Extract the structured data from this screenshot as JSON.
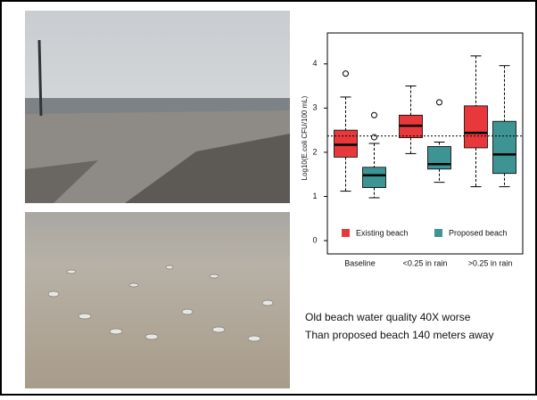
{
  "chart_data": {
    "type": "boxplot",
    "y_label": "Log10(E.coli CFU/100 mL)",
    "categories": [
      "Baseline",
      "<0.25 in rain",
      ">0.25 in rain"
    ],
    "series": [
      {
        "name": "Existing beach",
        "color": "#e8383b",
        "boxes": [
          {
            "whisker_low": 1.12,
            "q1": 1.89,
            "median": 2.17,
            "q3": 2.5,
            "whisker_high": 3.25,
            "outliers": [
              3.78
            ]
          },
          {
            "whisker_low": 1.97,
            "q1": 2.33,
            "median": 2.6,
            "q3": 2.84,
            "whisker_high": 3.5,
            "outliers": []
          },
          {
            "whisker_low": 1.22,
            "q1": 2.1,
            "median": 2.44,
            "q3": 3.05,
            "whisker_high": 4.18,
            "outliers": []
          }
        ]
      },
      {
        "name": "Proposed beach",
        "color": "#3e9393",
        "boxes": [
          {
            "whisker_low": 0.97,
            "q1": 1.2,
            "median": 1.48,
            "q3": 1.66,
            "whisker_high": 2.2,
            "outliers": [
              2.84,
              2.34
            ]
          },
          {
            "whisker_low": 1.32,
            "q1": 1.62,
            "median": 1.73,
            "q3": 2.13,
            "whisker_high": 2.23,
            "outliers": [
              3.13
            ]
          },
          {
            "whisker_low": 1.22,
            "q1": 1.52,
            "median": 1.95,
            "q3": 2.7,
            "whisker_high": 3.96,
            "outliers": []
          }
        ]
      }
    ],
    "reference_line": 2.37,
    "ylim": [
      -0.3,
      4.7
    ],
    "yticks": [
      0,
      1,
      2,
      3,
      4
    ]
  },
  "caption": [
    "Old beach water quality 40X worse",
    "Than proposed beach 140 meters away"
  ]
}
